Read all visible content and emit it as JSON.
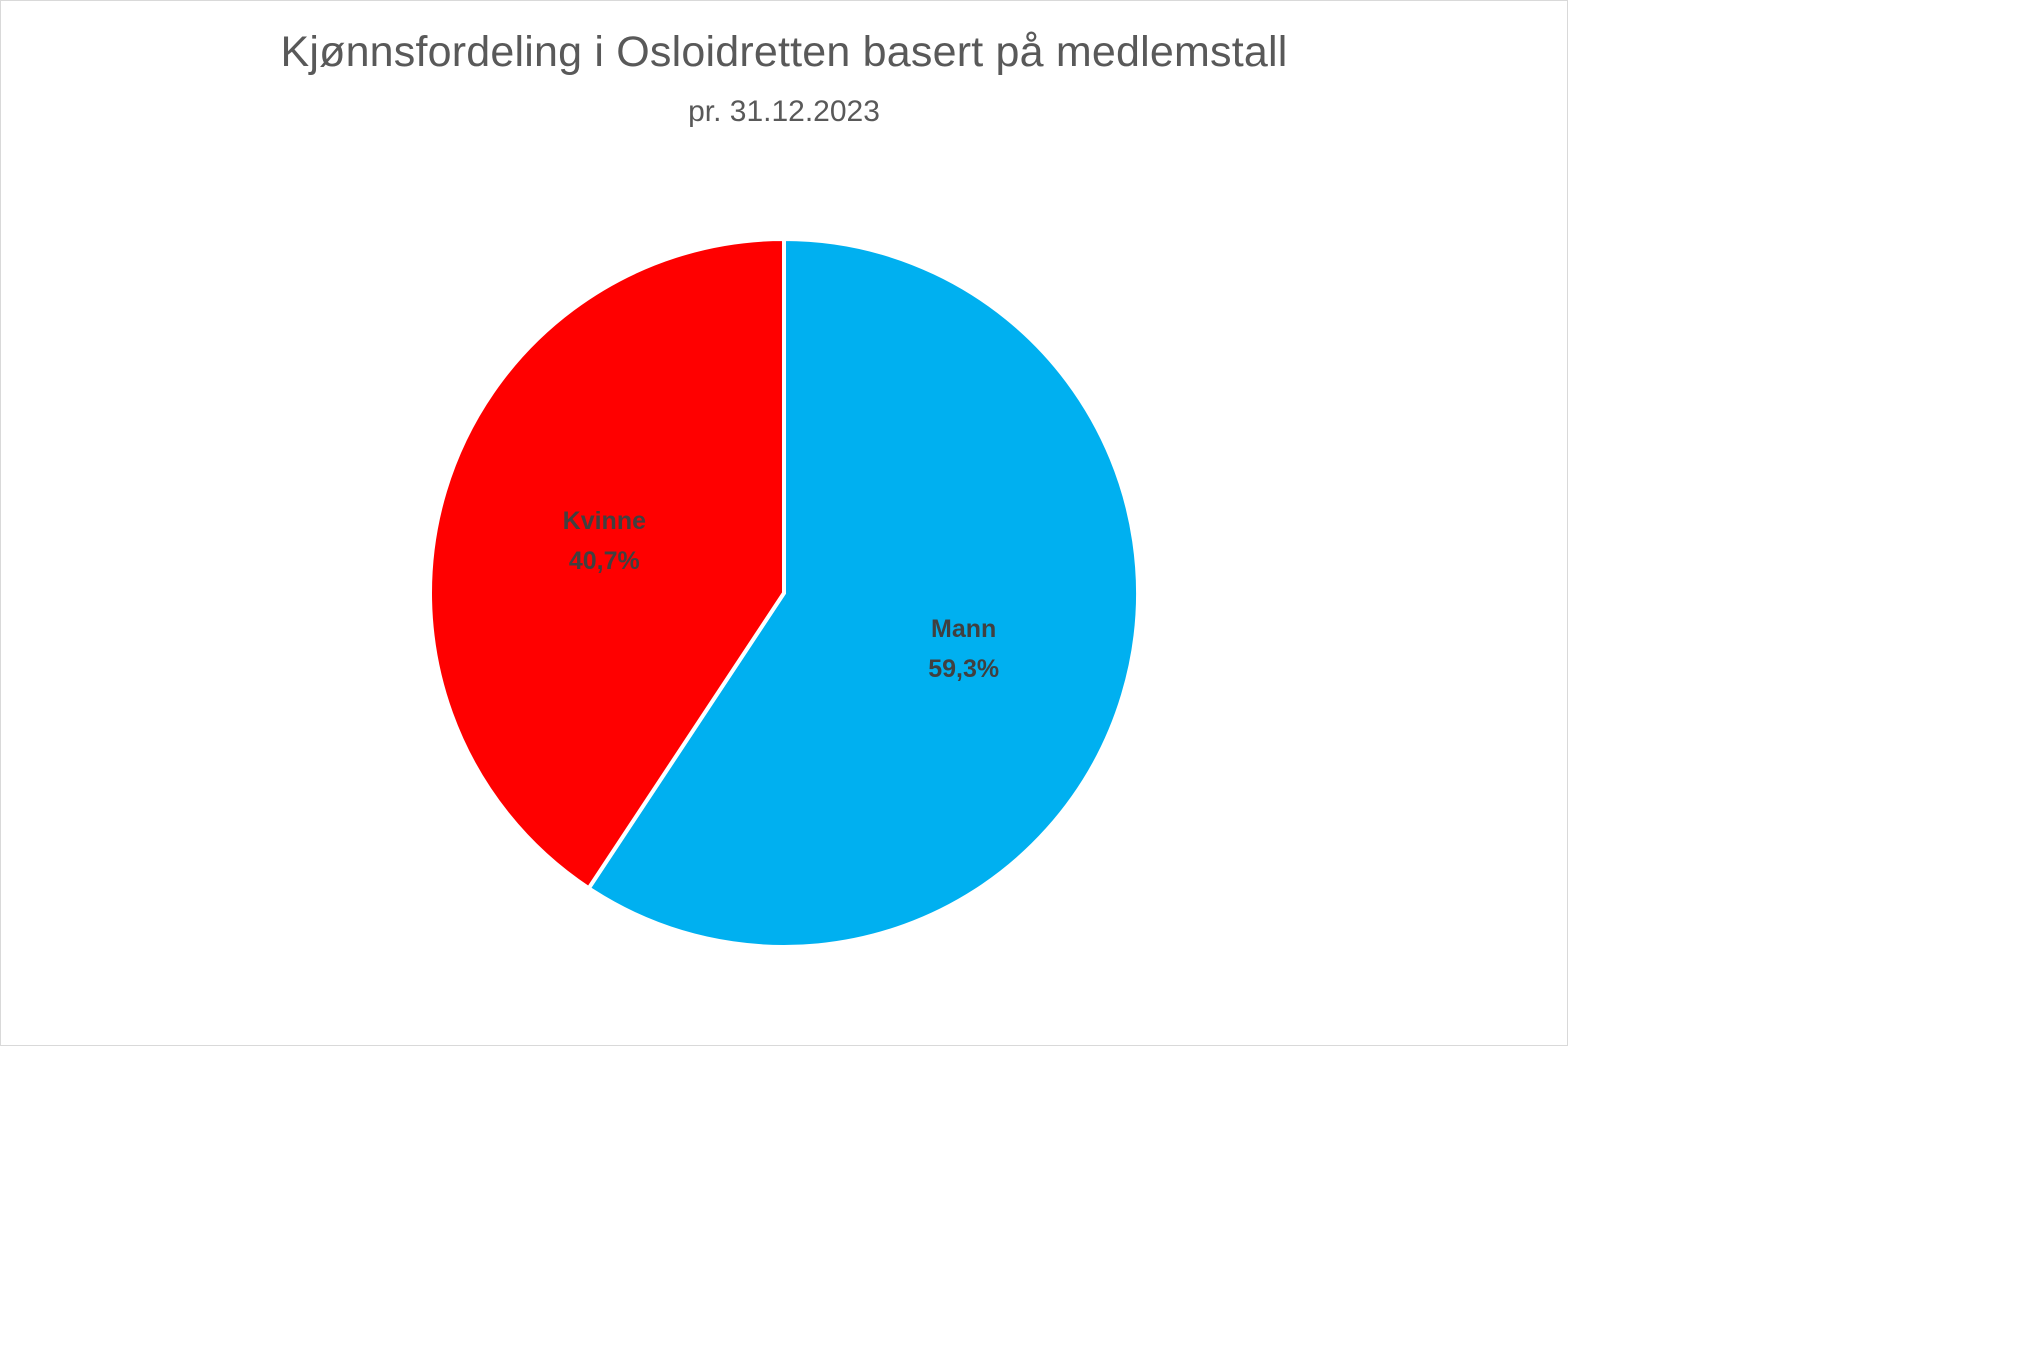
{
  "chart_data": {
    "type": "pie",
    "title": "Kjønnsfordeling i Osloidretten basert på medlemstall",
    "subtitle": "pr. 31.12.2023",
    "slices": [
      {
        "label": "Mann",
        "value": 59.3,
        "value_label": "59,3%",
        "color": "#00B0F0"
      },
      {
        "label": "Kvinne",
        "value": 40.7,
        "value_label": "40,7%",
        "color": "#FF0000"
      }
    ],
    "start_angle": "12 o'clock",
    "direction": "clockwise",
    "data_labels": "inside",
    "legend": "none"
  }
}
